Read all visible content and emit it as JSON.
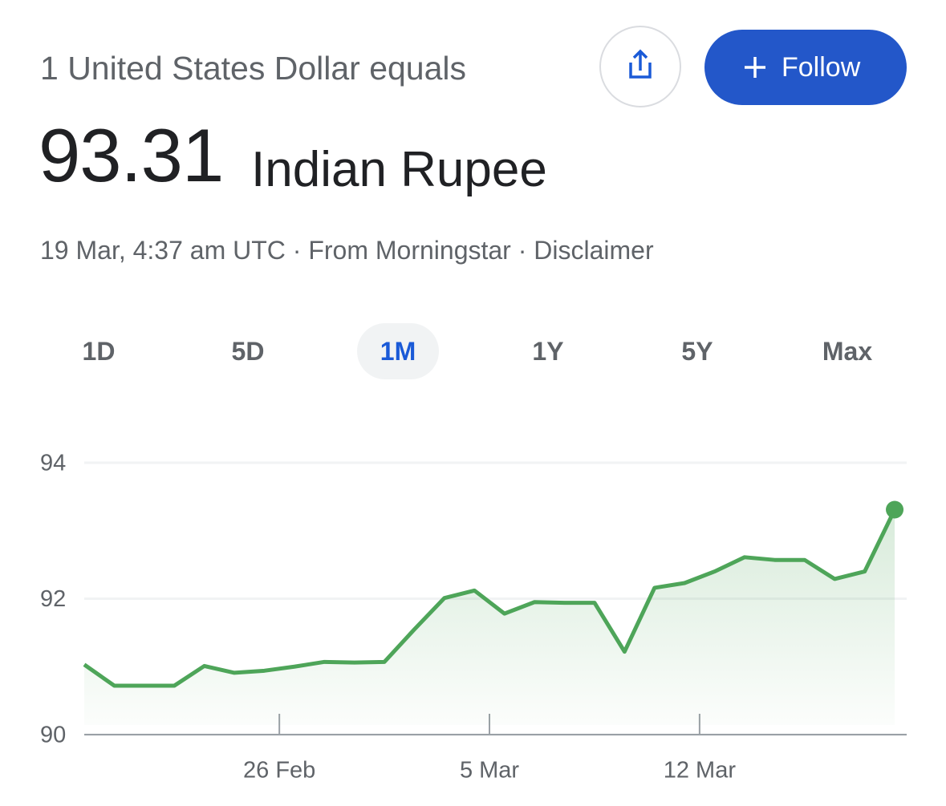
{
  "header": {
    "subtitle": "1 United States Dollar equals",
    "amount": "93.31",
    "currency": "Indian Rupee",
    "meta": "19 Mar, 4:37 am UTC · From Morningstar · Disclaimer"
  },
  "buttons": {
    "follow": "Follow"
  },
  "ranges": {
    "items": [
      "1D",
      "5D",
      "1M",
      "1Y",
      "5Y",
      "Max"
    ],
    "selected": 2
  },
  "chart_data": {
    "type": "line",
    "color": "#4ea559",
    "categories": [
      null,
      null,
      null,
      null,
      null,
      null,
      null,
      null,
      null,
      null,
      null,
      null,
      null,
      null,
      null,
      null,
      null,
      null,
      null,
      null,
      null,
      null,
      null,
      null,
      null,
      null,
      null,
      null
    ],
    "values": [
      91.03,
      90.72,
      90.72,
      90.72,
      91.01,
      90.91,
      90.94,
      91.0,
      91.07,
      91.06,
      91.07,
      91.55,
      92.01,
      92.12,
      91.78,
      91.95,
      91.94,
      91.94,
      91.22,
      92.16,
      92.23,
      92.4,
      92.61,
      92.57,
      92.57,
      92.29,
      92.4,
      93.31
    ],
    "xlim": [
      0,
      27.4
    ],
    "xticks": [
      {
        "value": 6.5,
        "label": "26 Feb"
      },
      {
        "value": 13.5,
        "label": "5 Mar"
      },
      {
        "value": 20.5,
        "label": "12 Mar"
      }
    ],
    "ylim": [
      90,
      94
    ],
    "yticks": [
      90,
      92,
      94
    ],
    "grid": true
  }
}
